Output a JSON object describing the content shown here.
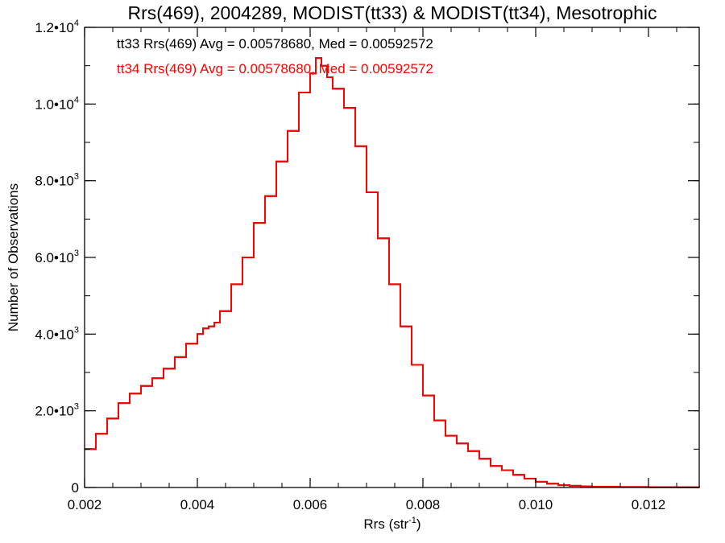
{
  "chart_data": {
    "type": "line",
    "title": "Rrs(469), 2004289, MODIST(tt33) & MODIST(tt34), Mesotrophic",
    "xlabel": "Rrs (str",
    "xlabel_sup": "-1",
    "xlabel_end": ")",
    "ylabel": "Number of Observations",
    "xlim": [
      0.002,
      0.0129
    ],
    "ylim": [
      0,
      12000
    ],
    "x_ticks": [
      {
        "value": 0.002,
        "label": "0.002"
      },
      {
        "value": 0.004,
        "label": "0.004"
      },
      {
        "value": 0.006,
        "label": "0.006"
      },
      {
        "value": 0.008,
        "label": "0.008"
      },
      {
        "value": 0.01,
        "label": "0.010"
      },
      {
        "value": 0.012,
        "label": "0.012"
      }
    ],
    "y_ticks": [
      {
        "value": 0,
        "mant": "0",
        "exp": ""
      },
      {
        "value": 2000,
        "mant": "2.0•1",
        "exp": "3"
      },
      {
        "value": 4000,
        "mant": "4.0•1",
        "exp": "3"
      },
      {
        "value": 6000,
        "mant": "6.0•1",
        "exp": "3"
      },
      {
        "value": 8000,
        "mant": "8.0•1",
        "exp": "3"
      },
      {
        "value": 10000,
        "mant": "1.0•1",
        "exp": "4"
      },
      {
        "value": 12000,
        "mant": "1.2•1",
        "exp": "4"
      }
    ],
    "annotations": [
      {
        "text": "tt33 Rrs(469) Avg = 0.00578680, Med = 0.00592572",
        "color": "#000000"
      },
      {
        "text": "tt34 Rrs(469) Avg = 0.00578680, Med = 0.00592572",
        "color": "#ff0000"
      }
    ],
    "series": [
      {
        "name": "tt33",
        "color": "#000000",
        "x": [
          0.002,
          0.0022,
          0.0024,
          0.0026,
          0.0028,
          0.003,
          0.0032,
          0.0034,
          0.0036,
          0.0038,
          0.004,
          0.0041,
          0.0042,
          0.0043,
          0.0044,
          0.0046,
          0.0048,
          0.005,
          0.0052,
          0.0054,
          0.0056,
          0.0058,
          0.006,
          0.0061,
          0.0062,
          0.0063,
          0.0064,
          0.0066,
          0.0068,
          0.007,
          0.0072,
          0.0074,
          0.0076,
          0.0078,
          0.008,
          0.0082,
          0.0084,
          0.0086,
          0.0088,
          0.009,
          0.0092,
          0.0094,
          0.0096,
          0.0098,
          0.01,
          0.0102,
          0.0104,
          0.0106,
          0.0108,
          0.011,
          0.0115,
          0.012,
          0.0125,
          0.0129
        ],
        "y": [
          1000,
          1400,
          1800,
          2200,
          2450,
          2650,
          2850,
          3100,
          3400,
          3750,
          4000,
          4150,
          4200,
          4300,
          4600,
          5300,
          6000,
          6900,
          7600,
          8500,
          9300,
          10300,
          10800,
          11200,
          11000,
          10700,
          10400,
          9900,
          8900,
          7700,
          6500,
          5300,
          4200,
          3200,
          2400,
          1750,
          1350,
          1150,
          950,
          750,
          560,
          450,
          330,
          230,
          150,
          100,
          60,
          45,
          30,
          20,
          12,
          8,
          5,
          3
        ]
      },
      {
        "name": "tt34",
        "color": "#ff0000",
        "x": [
          0.002,
          0.0022,
          0.0024,
          0.0026,
          0.0028,
          0.003,
          0.0032,
          0.0034,
          0.0036,
          0.0038,
          0.004,
          0.0041,
          0.0042,
          0.0043,
          0.0044,
          0.0046,
          0.0048,
          0.005,
          0.0052,
          0.0054,
          0.0056,
          0.0058,
          0.006,
          0.0061,
          0.0062,
          0.0063,
          0.0064,
          0.0066,
          0.0068,
          0.007,
          0.0072,
          0.0074,
          0.0076,
          0.0078,
          0.008,
          0.0082,
          0.0084,
          0.0086,
          0.0088,
          0.009,
          0.0092,
          0.0094,
          0.0096,
          0.0098,
          0.01,
          0.0102,
          0.0104,
          0.0106,
          0.0108,
          0.011,
          0.0115,
          0.012,
          0.0125,
          0.0129
        ],
        "y": [
          1000,
          1400,
          1800,
          2200,
          2450,
          2650,
          2850,
          3100,
          3400,
          3750,
          4000,
          4150,
          4200,
          4300,
          4600,
          5300,
          6000,
          6900,
          7600,
          8500,
          9300,
          10300,
          10800,
          11200,
          11000,
          10700,
          10400,
          9900,
          8900,
          7700,
          6500,
          5300,
          4200,
          3200,
          2400,
          1750,
          1350,
          1150,
          950,
          750,
          560,
          450,
          330,
          230,
          150,
          100,
          60,
          45,
          30,
          20,
          12,
          8,
          5,
          3
        ]
      }
    ],
    "grid": false,
    "legend": "none"
  }
}
